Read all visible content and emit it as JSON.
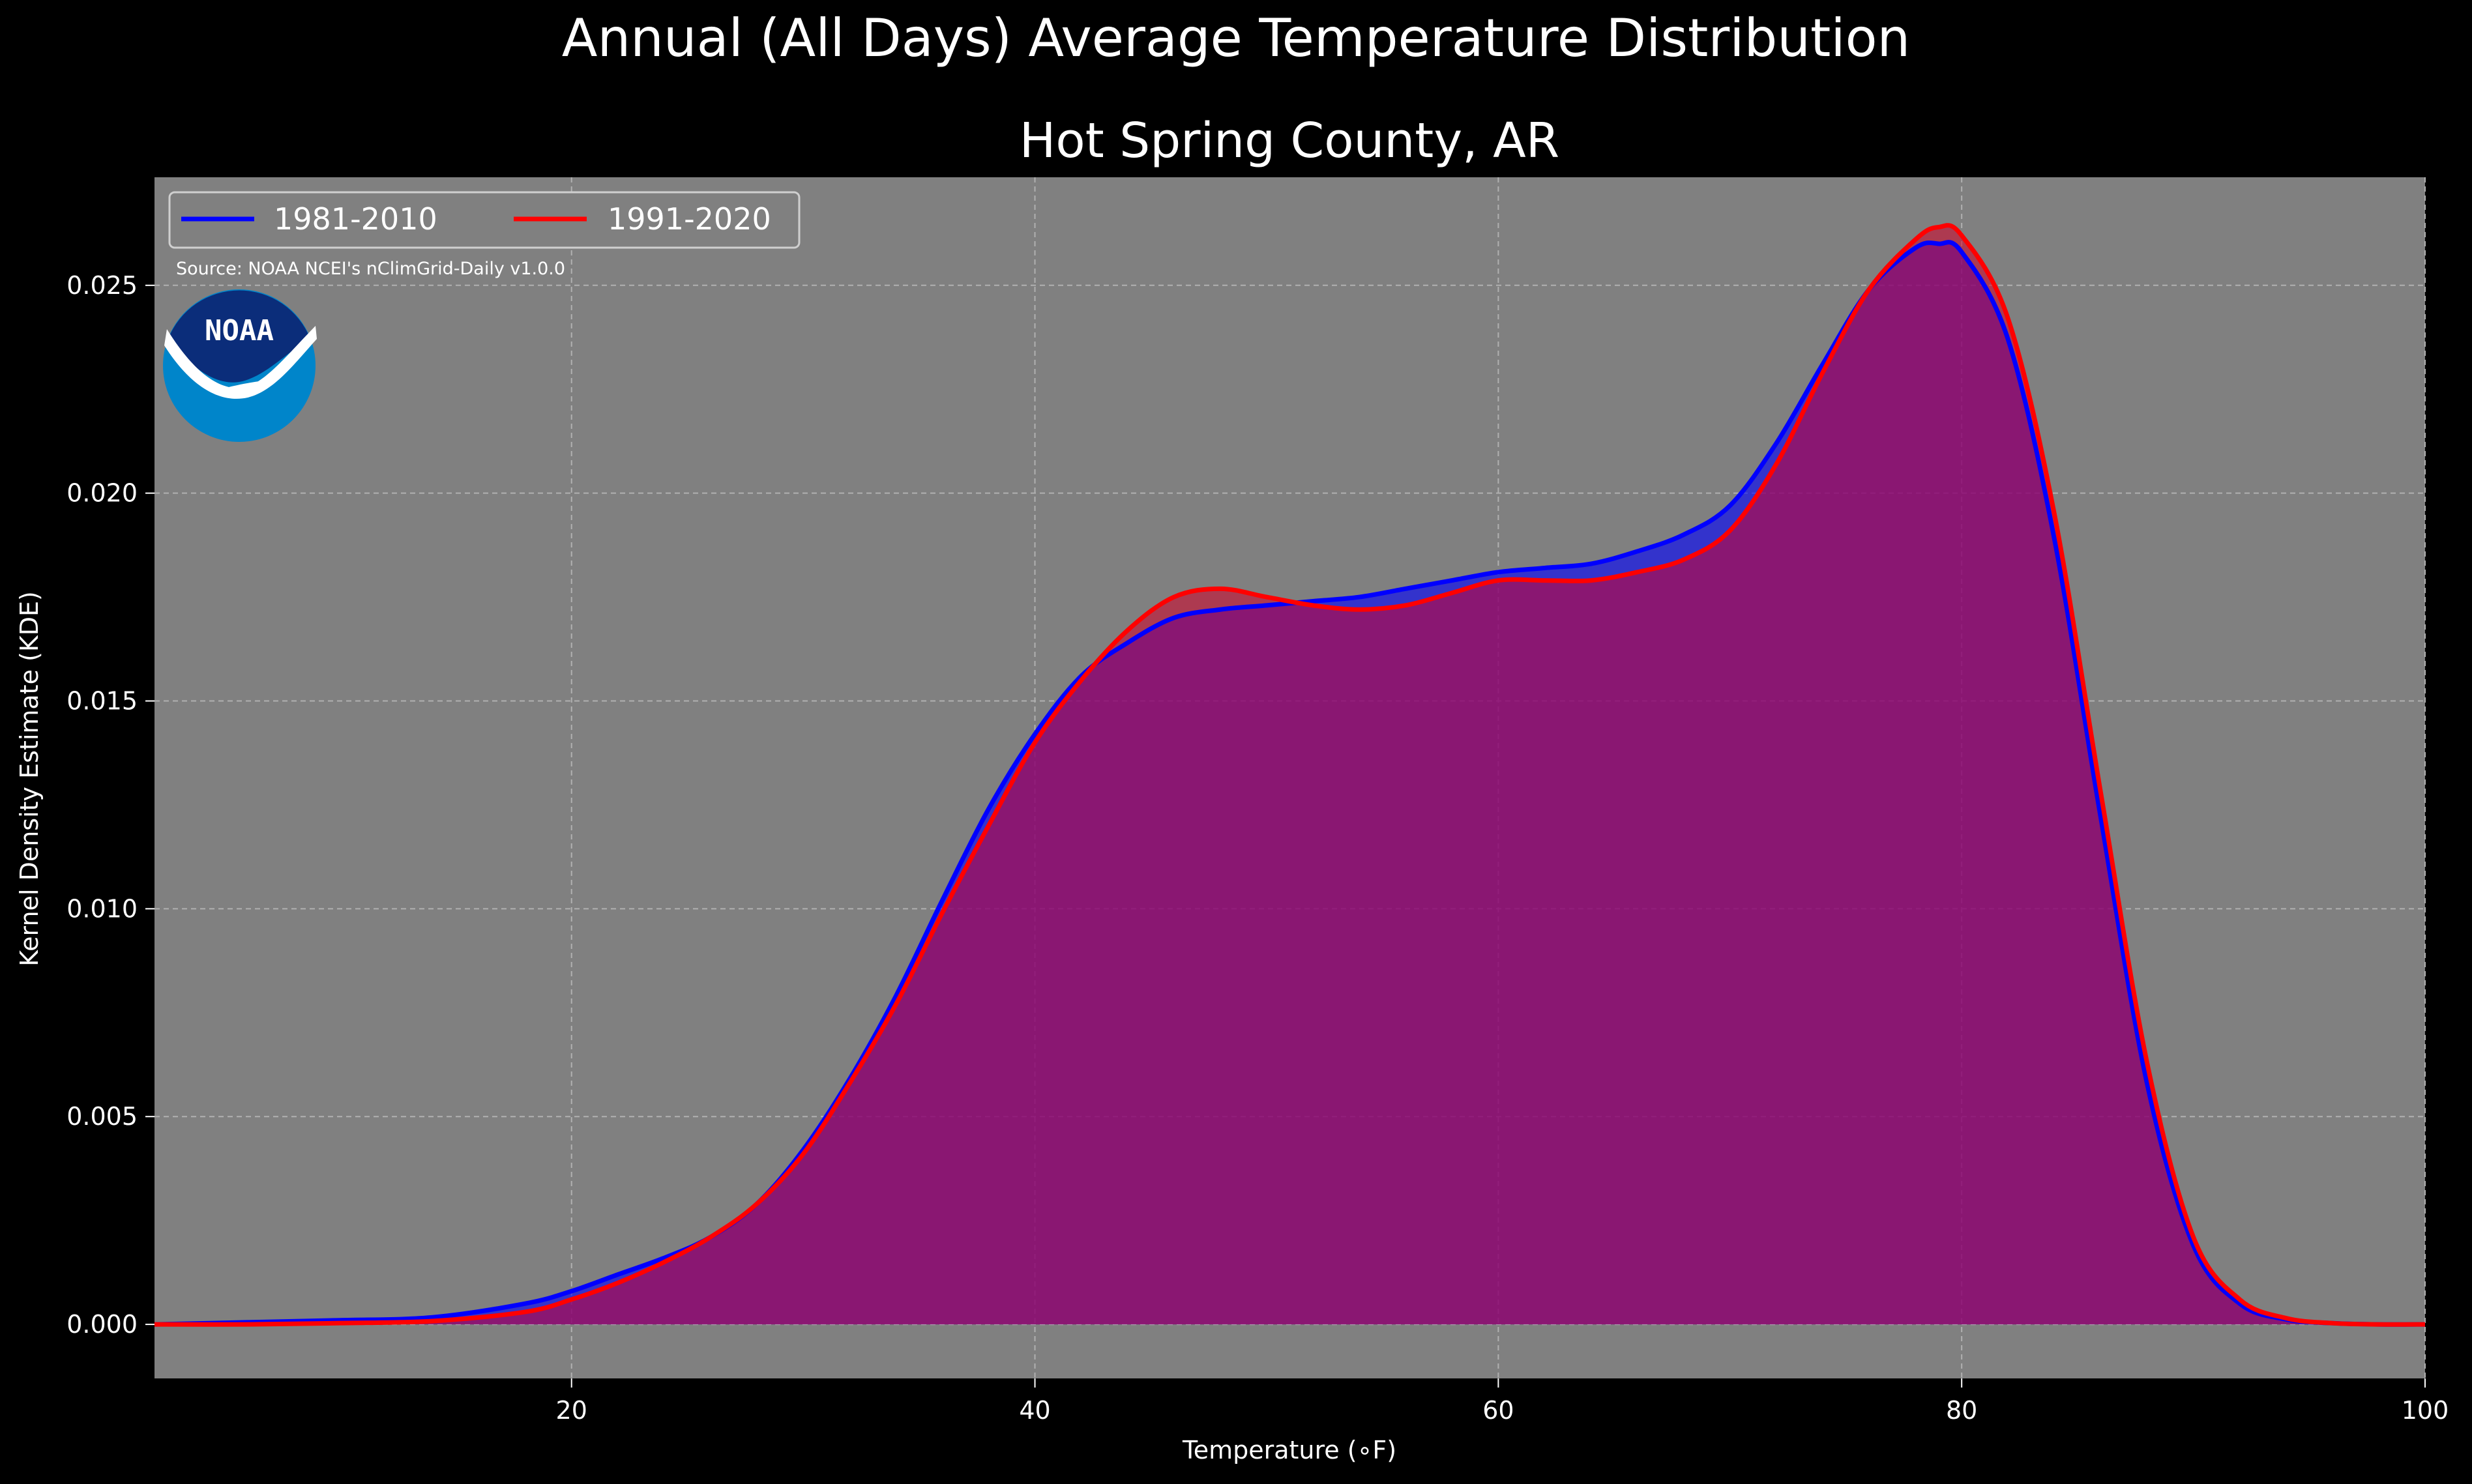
{
  "figure": {
    "title": "Annual (All Days) Average Temperature Distribution"
  },
  "chart_data": {
    "type": "area",
    "title": "Hot Spring County, AR",
    "xlabel": "Temperature (∘F)",
    "ylabel": "Kernel Density Estimate (KDE)",
    "xlim": [
      2,
      100
    ],
    "ylim": [
      -0.0013,
      0.0276
    ],
    "xticks": [
      20,
      40,
      60,
      80,
      100
    ],
    "xtick_labels": [
      "20",
      "40",
      "60",
      "80",
      "100"
    ],
    "yticks": [
      0.0,
      0.005,
      0.01,
      0.015,
      0.02,
      0.025
    ],
    "ytick_labels": [
      "0.000",
      "0.005",
      "0.010",
      "0.015",
      "0.020",
      "0.025"
    ],
    "grid": true,
    "legend_placement": "upper-left",
    "source": "Source: NOAA NCEI's nClimGrid-Daily v1.0.0",
    "logo_text": "NOAA",
    "colors": {
      "background": "#000000",
      "plot_background": "#808080",
      "grid": "#b0b0b0"
    },
    "series": [
      {
        "name": "1981-2010",
        "color": "#0000ff",
        "fill": "rgba(0,0,255,0.6)",
        "x": [
          2,
          6,
          10,
          14,
          18,
          20,
          22,
          24,
          26,
          28,
          30,
          32,
          34,
          36,
          38,
          40,
          42,
          44,
          46,
          48,
          50,
          52,
          54,
          56,
          58,
          60,
          62,
          64,
          66,
          68,
          70,
          72,
          74,
          76,
          78,
          79,
          80,
          82,
          84,
          86,
          88,
          90,
          92,
          94,
          96,
          98,
          100
        ],
        "y": [
          0.0,
          5e-05,
          0.0001,
          0.00017,
          0.0005,
          0.0008,
          0.0012,
          0.0016,
          0.0021,
          0.0029,
          0.0042,
          0.0059,
          0.0079,
          0.0102,
          0.0124,
          0.0142,
          0.0156,
          0.0164,
          0.017,
          0.0172,
          0.0173,
          0.0174,
          0.0175,
          0.0177,
          0.0179,
          0.0181,
          0.0182,
          0.0183,
          0.0186,
          0.019,
          0.0197,
          0.0212,
          0.0231,
          0.0249,
          0.0259,
          0.026,
          0.0258,
          0.0237,
          0.0189,
          0.0122,
          0.0058,
          0.0019,
          0.0005,
          0.00012,
          3e-05,
          0.0,
          0.0
        ]
      },
      {
        "name": "1991-2020",
        "color": "#ff0000",
        "fill": "rgba(210,0,40,0.55)",
        "x": [
          2,
          6,
          10,
          14,
          18,
          20,
          22,
          24,
          26,
          28,
          30,
          32,
          34,
          36,
          38,
          40,
          42,
          44,
          46,
          48,
          50,
          52,
          54,
          56,
          58,
          60,
          62,
          64,
          66,
          68,
          70,
          72,
          74,
          76,
          78,
          79,
          80,
          82,
          84,
          86,
          88,
          90,
          92,
          94,
          96,
          98,
          100
        ],
        "y": [
          0.0,
          0.0,
          3e-05,
          8e-05,
          0.0003,
          0.0006,
          0.001,
          0.0015,
          0.0021,
          0.0029,
          0.0041,
          0.0058,
          0.0077,
          0.0099,
          0.012,
          0.014,
          0.0155,
          0.0167,
          0.0175,
          0.0177,
          0.0175,
          0.0173,
          0.0172,
          0.0173,
          0.0176,
          0.0179,
          0.0179,
          0.0179,
          0.0181,
          0.0184,
          0.0191,
          0.0207,
          0.0229,
          0.0249,
          0.0261,
          0.0264,
          0.0262,
          0.0242,
          0.0195,
          0.0128,
          0.0063,
          0.0021,
          0.0006,
          0.00015,
          3e-05,
          0.0,
          0.0
        ]
      }
    ]
  }
}
